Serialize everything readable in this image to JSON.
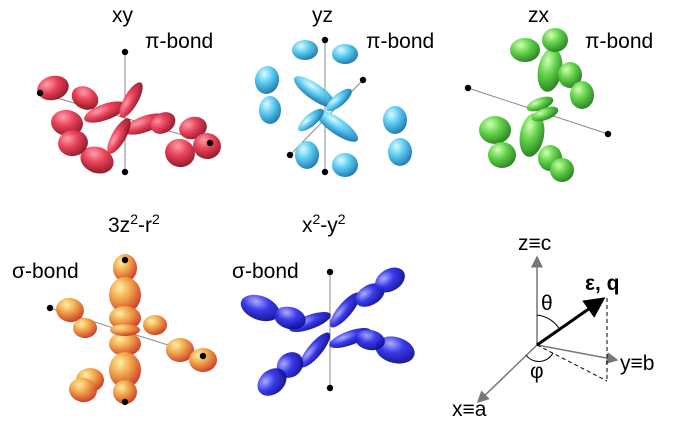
{
  "panels": [
    {
      "title": [
        "xy"
      ],
      "bond": "π-bond"
    },
    {
      "title": [
        "yz"
      ],
      "bond": "π-bond"
    },
    {
      "title": [
        "zx"
      ],
      "bond": "π-bond"
    },
    {
      "title": [
        "3z",
        "2",
        "-r",
        "2"
      ],
      "bond": "σ-bond"
    },
    {
      "title": [
        "x",
        "2",
        "-y",
        "2"
      ],
      "bond": "σ-bond"
    }
  ],
  "axes": {
    "z": "z≡c",
    "y": "y≡b",
    "x": "x≡a",
    "vector": "ε, q",
    "theta": "θ",
    "phi": "φ"
  }
}
